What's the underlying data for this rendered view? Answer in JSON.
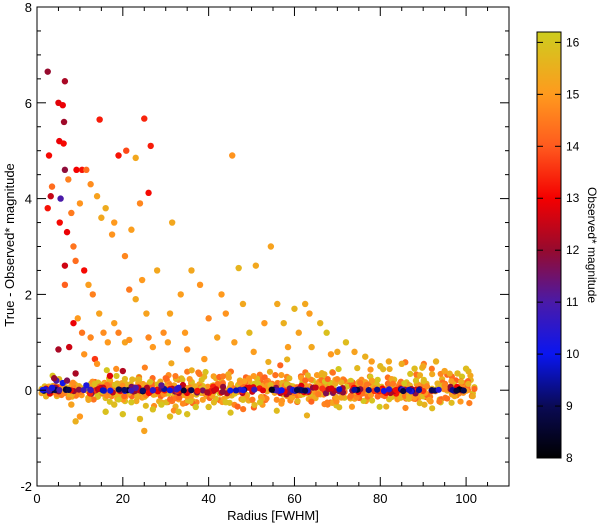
{
  "chart_data": {
    "type": "scatter",
    "title": "",
    "xlabel": "Radius [FWHM]",
    "ylabel": "True - Observed* magnitude",
    "xlim": [
      0,
      110
    ],
    "ylim": [
      -2,
      8
    ],
    "x_ticks": [
      0,
      20,
      40,
      60,
      80,
      100
    ],
    "y_ticks": [
      -2,
      0,
      2,
      4,
      6,
      8
    ],
    "grid": false,
    "colorbar": {
      "label": "Observed* magnitude",
      "range": [
        8,
        16.2
      ],
      "ticks": [
        8,
        9,
        10,
        11,
        12,
        13,
        14,
        15,
        16
      ],
      "colormap": "black-blue-purple-red-orange-yellow",
      "stops": [
        [
          8.0,
          "#000000"
        ],
        [
          9.0,
          "#0a0a55"
        ],
        [
          10.0,
          "#0a16f0"
        ],
        [
          11.0,
          "#4a1aa8"
        ],
        [
          12.0,
          "#960a2e"
        ],
        [
          13.0,
          "#f40000"
        ],
        [
          14.0,
          "#ff5a1e"
        ],
        [
          15.0,
          "#ff9a1e"
        ],
        [
          16.2,
          "#cdcd1e"
        ]
      ]
    },
    "notes": "Over 1000 points; the dense band near y=0 spans x from 1 to 102 and is summarized here by representative points.",
    "points": [
      [
        2.5,
        6.65,
        12.0
      ],
      [
        5.0,
        6.0,
        12.8
      ],
      [
        6.5,
        6.45,
        12.2
      ],
      [
        6.0,
        5.95,
        12.9
      ],
      [
        5.2,
        5.2,
        12.9
      ],
      [
        6.3,
        5.6,
        12.1
      ],
      [
        6.2,
        5.15,
        13.1
      ],
      [
        2.8,
        4.9,
        13.1
      ],
      [
        6.5,
        4.6,
        11.9
      ],
      [
        9.2,
        4.6,
        13.0
      ],
      [
        7.3,
        4.4,
        14.6
      ],
      [
        10.5,
        4.6,
        13.2
      ],
      [
        3.2,
        4.05,
        12.5
      ],
      [
        5.5,
        4.0,
        11.0
      ],
      [
        2.5,
        3.8,
        13.2
      ],
      [
        3.5,
        4.25,
        14.3
      ],
      [
        5.3,
        3.5,
        13.1
      ],
      [
        7.0,
        3.3,
        12.9
      ],
      [
        6.5,
        2.6,
        12.6
      ],
      [
        8.5,
        3.0,
        14.4
      ],
      [
        11.0,
        2.5,
        13.1
      ],
      [
        14.6,
        5.65,
        13.3
      ],
      [
        19.0,
        4.9,
        13.2
      ],
      [
        20.8,
        5.0,
        13.8
      ],
      [
        23.0,
        4.85,
        15.3
      ],
      [
        25.0,
        5.67,
        13.4
      ],
      [
        26.5,
        5.1,
        13.3
      ],
      [
        26.0,
        4.12,
        13.1
      ],
      [
        24.0,
        3.9,
        14.7
      ],
      [
        22.0,
        3.35,
        15.1
      ],
      [
        21.5,
        2.1,
        14.5
      ],
      [
        15.0,
        3.6,
        15.3
      ],
      [
        14.0,
        4.05,
        15.2
      ],
      [
        11.5,
        4.6,
        14.3
      ],
      [
        12.5,
        4.3,
        14.8
      ],
      [
        16.0,
        3.8,
        15.4
      ],
      [
        18.0,
        3.5,
        15.0
      ],
      [
        17.5,
        3.25,
        14.9
      ],
      [
        20.5,
        2.8,
        14.7
      ],
      [
        8.0,
        3.7,
        14.5
      ],
      [
        9.0,
        2.7,
        14.3
      ],
      [
        10.0,
        3.9,
        14.9
      ],
      [
        12.0,
        2.2,
        15.1
      ],
      [
        13.0,
        2.0,
        14.6
      ],
      [
        6.5,
        2.2,
        14.1
      ],
      [
        9.5,
        1.5,
        15.0
      ],
      [
        10.5,
        1.2,
        14.4
      ],
      [
        8.5,
        1.4,
        12.9
      ],
      [
        12.5,
        1.1,
        14.7
      ],
      [
        13.5,
        0.65,
        13.6
      ],
      [
        11.0,
        0.75,
        14.9
      ],
      [
        14.5,
        1.6,
        15.2
      ],
      [
        15.5,
        1.2,
        14.8
      ],
      [
        16.5,
        1.0,
        15.0
      ],
      [
        18.0,
        1.4,
        15.1
      ],
      [
        19.0,
        1.2,
        14.6
      ],
      [
        20.5,
        1.0,
        15.2
      ],
      [
        21.5,
        1.05,
        14.9
      ],
      [
        23.0,
        1.9,
        15.3
      ],
      [
        24.5,
        2.3,
        15.0
      ],
      [
        25.5,
        1.6,
        15.2
      ],
      [
        26.0,
        1.1,
        14.7
      ],
      [
        27.0,
        0.9,
        15.0
      ],
      [
        28.0,
        2.5,
        15.3
      ],
      [
        29.5,
        1.2,
        14.8
      ],
      [
        30.5,
        1.0,
        15.1
      ],
      [
        31.0,
        1.6,
        15.2
      ],
      [
        31.5,
        3.5,
        15.3
      ],
      [
        33.5,
        2.0,
        15.1
      ],
      [
        34.5,
        1.2,
        15.0
      ],
      [
        35.0,
        0.85,
        14.8
      ],
      [
        36.0,
        2.5,
        15.3
      ],
      [
        38.0,
        2.2,
        14.9
      ],
      [
        39.0,
        0.65,
        15.0
      ],
      [
        40.0,
        1.5,
        14.7
      ],
      [
        42.0,
        1.1,
        15.2
      ],
      [
        43.0,
        2.0,
        15.0
      ],
      [
        44.0,
        1.6,
        14.9
      ],
      [
        45.5,
        4.9,
        14.9
      ],
      [
        46.0,
        1.0,
        15.1
      ],
      [
        47.0,
        2.55,
        15.6
      ],
      [
        48.0,
        1.8,
        15.3
      ],
      [
        49.5,
        1.2,
        15.7
      ],
      [
        50.5,
        0.8,
        15.1
      ],
      [
        51.0,
        2.6,
        15.3
      ],
      [
        53.0,
        1.4,
        15.0
      ],
      [
        54.5,
        3.0,
        15.2
      ],
      [
        56.0,
        1.8,
        15.3
      ],
      [
        57.5,
        1.4,
        15.5
      ],
      [
        58.5,
        0.9,
        15.1
      ],
      [
        60.0,
        1.7,
        15.6
      ],
      [
        61.0,
        1.2,
        15.2
      ],
      [
        62.5,
        1.8,
        15.3
      ],
      [
        63.5,
        1.6,
        15.1
      ],
      [
        64.0,
        0.9,
        15.3
      ],
      [
        66.0,
        1.4,
        15.6
      ],
      [
        67.5,
        1.2,
        15.9
      ],
      [
        68.5,
        0.75,
        15.0
      ],
      [
        70.0,
        0.8,
        15.3
      ],
      [
        72.0,
        1.0,
        15.8
      ],
      [
        74.0,
        0.8,
        15.2
      ],
      [
        76.5,
        0.7,
        15.5
      ],
      [
        78.0,
        0.6,
        15.1
      ],
      [
        80.0,
        0.5,
        15.7
      ],
      [
        82.0,
        0.6,
        15.3
      ],
      [
        85.0,
        0.55,
        15.4
      ],
      [
        88.0,
        0.45,
        15.8
      ],
      [
        90.0,
        0.5,
        15.3
      ],
      [
        93.0,
        0.6,
        15.5
      ],
      [
        95.0,
        0.4,
        15.2
      ],
      [
        98.0,
        0.35,
        15.7
      ],
      [
        100.0,
        0.45,
        15.8
      ],
      [
        16.0,
        -0.45,
        15.9
      ],
      [
        18.0,
        -0.3,
        15.8
      ],
      [
        20.0,
        -0.5,
        15.9
      ],
      [
        22.0,
        -0.25,
        16.0
      ],
      [
        24.0,
        -0.6,
        15.7
      ],
      [
        25.0,
        -0.85,
        15.2
      ],
      [
        27.0,
        -0.4,
        15.9
      ],
      [
        29.0,
        -0.3,
        16.0
      ],
      [
        31.0,
        -0.55,
        15.8
      ],
      [
        33.0,
        -0.45,
        15.9
      ],
      [
        35.0,
        -0.5,
        15.9
      ],
      [
        37.0,
        -0.35,
        16.0
      ],
      [
        40.0,
        -0.35,
        15.8
      ],
      [
        44.0,
        -0.25,
        15.9
      ],
      [
        48.0,
        -0.2,
        15.8
      ],
      [
        52.0,
        -0.25,
        15.9
      ],
      [
        8.0,
        -0.3,
        15.2
      ],
      [
        9.0,
        -0.65,
        15.5
      ],
      [
        10.0,
        -0.55,
        15.0
      ],
      [
        12.0,
        -0.2,
        15.3
      ],
      [
        14.0,
        0.55,
        14.9
      ],
      [
        3.5,
        0.05,
        10.2
      ],
      [
        6.0,
        0.15,
        10.1
      ],
      [
        11.5,
        0.1,
        10.3
      ],
      [
        4.5,
        0.2,
        11.0
      ],
      [
        7.0,
        0.2,
        11.7
      ],
      [
        9.0,
        0.35,
        12.2
      ],
      [
        4.0,
        0.25,
        12.0
      ],
      [
        17.0,
        0.3,
        12.8
      ],
      [
        20.0,
        0.4,
        12.3
      ],
      [
        5.0,
        0.85,
        12.2
      ],
      [
        7.5,
        0.9,
        12.6
      ],
      [
        23.0,
        0.05,
        11.0
      ],
      [
        27.0,
        0.0,
        10.6
      ],
      [
        29.0,
        0.1,
        11.2
      ],
      [
        33.0,
        0.05,
        10.5
      ]
    ]
  }
}
